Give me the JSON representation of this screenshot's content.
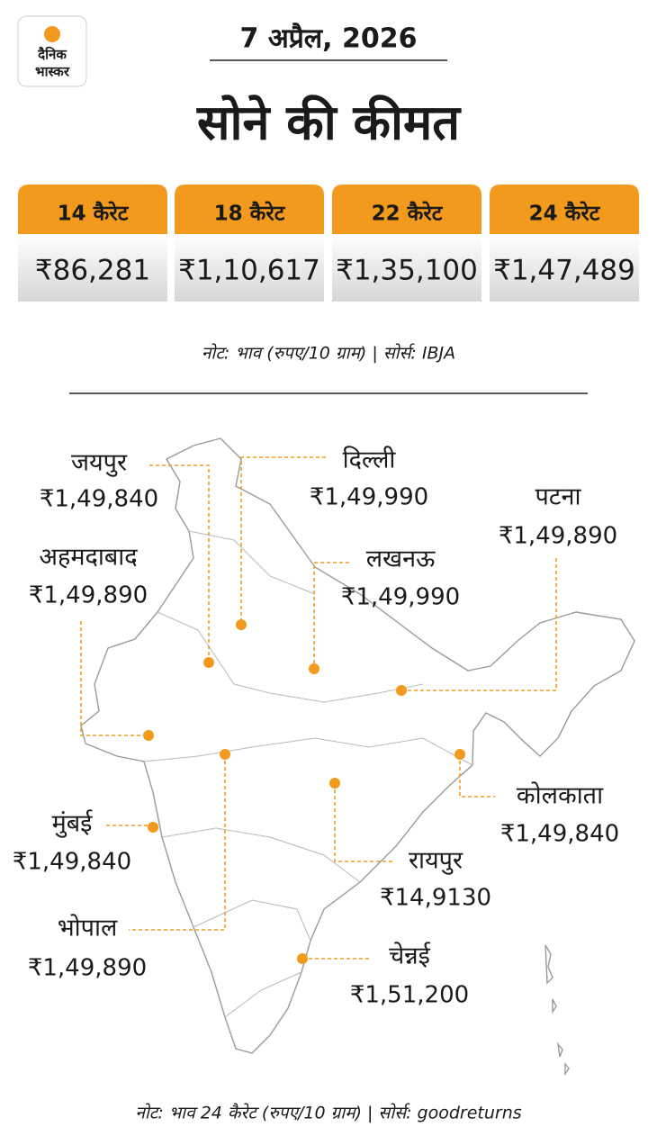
{
  "header": {
    "logo": [
      "दैनिक",
      "भास्कर"
    ],
    "date": "7 अप्रैल, 2026",
    "title": "सोने की कीमत"
  },
  "karats": [
    {
      "label": "14 कैरेट",
      "price": "₹86,281"
    },
    {
      "label": "18 कैरेट",
      "price": "₹1,10,617"
    },
    {
      "label": "22 कैरेट",
      "price": "₹1,35,100"
    },
    {
      "label": "24 कैरेट",
      "price": "₹1,47,489"
    }
  ],
  "note": "नोट: भाव (रुपए/10 ग्राम) | सोर्स: IBJA",
  "cities": [
    {
      "name": "जयपुर",
      "price": "₹1,49,840"
    },
    {
      "name": "दिल्ली",
      "price": "₹1,49,990"
    },
    {
      "name": "पटना",
      "price": "₹1,49,890"
    },
    {
      "name": "अहमदाबाद",
      "price": "₹1,49,890"
    },
    {
      "name": "लखनऊ",
      "price": "₹1,49,990"
    },
    {
      "name": "मुंबई",
      "price": "₹1,49,840"
    },
    {
      "name": "कोलकाता",
      "price": "₹1,49,840"
    },
    {
      "name": "रायपुर",
      "price": "₹14,9130"
    },
    {
      "name": "भोपाल",
      "price": "₹1,49,890"
    },
    {
      "name": "चेन्नई",
      "price": "₹1,51,200"
    }
  ],
  "footer": "नोट: भाव 24 कैरेट (रुपए/10 ग्राम) | सोर्स: goodreturns"
}
